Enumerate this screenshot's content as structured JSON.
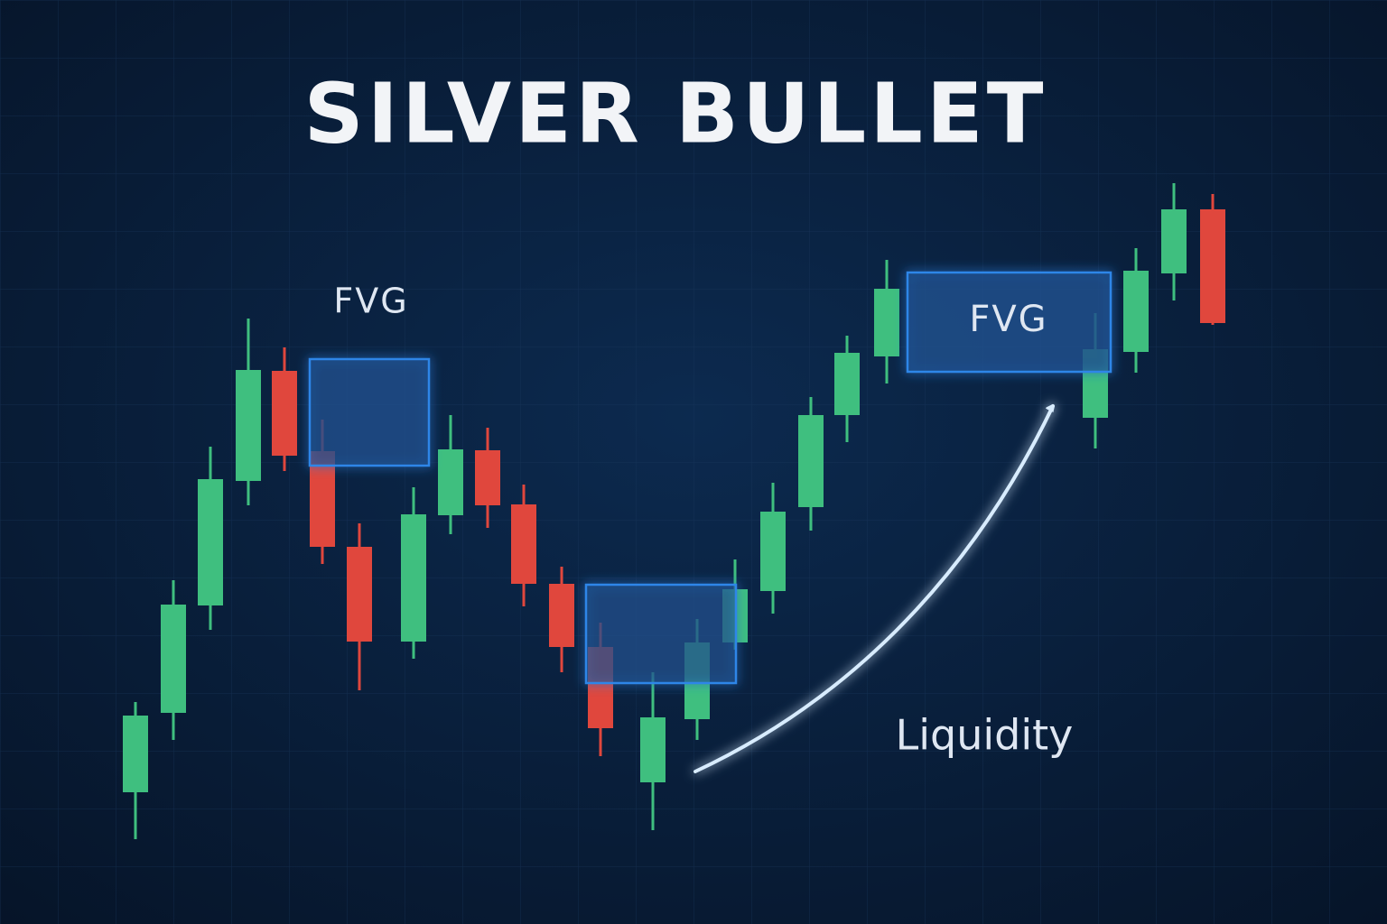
{
  "chart_data": {
    "type": "candlestick",
    "title": "SILVER BULLET",
    "annotations": [
      "FVG",
      "FVG",
      "Liquidity"
    ]
  }
}
